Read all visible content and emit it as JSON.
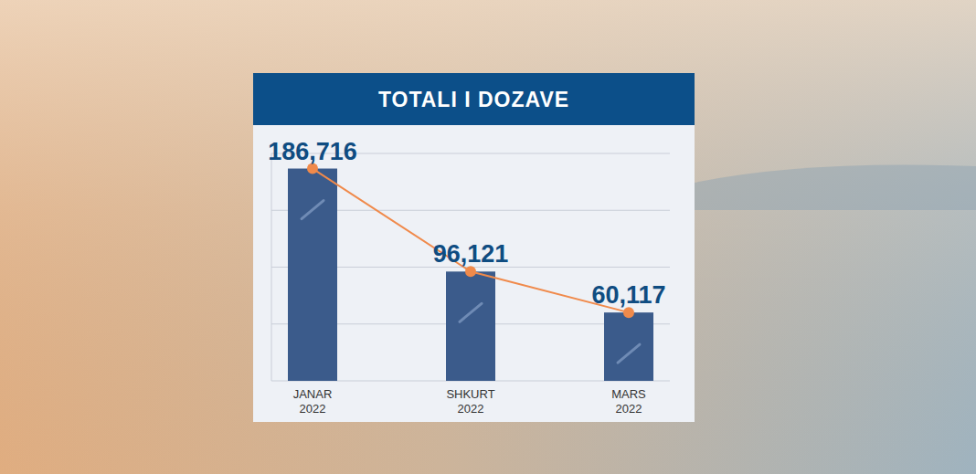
{
  "chart_data": {
    "type": "bar",
    "title": "TOTALI I DOZAVE",
    "categories": [
      "JANAR 2022",
      "SHKURT 2022",
      "MARS 2022"
    ],
    "series": [
      {
        "type": "bar",
        "color": "#3b5b8b",
        "values": [
          186716,
          96121,
          60117
        ],
        "value_labels": [
          "186,716",
          "96,121",
          "60,117"
        ]
      },
      {
        "type": "line",
        "color": "#f08a4b",
        "marker": "circle",
        "line_style": "solid",
        "values": [
          186716,
          96121,
          60117
        ]
      }
    ],
    "ylim": [
      0,
      200000
    ],
    "yticks": [
      0,
      50000,
      100000,
      150000,
      200000
    ],
    "grid": true,
    "data_labels": true,
    "tick_labels": "x"
  }
}
